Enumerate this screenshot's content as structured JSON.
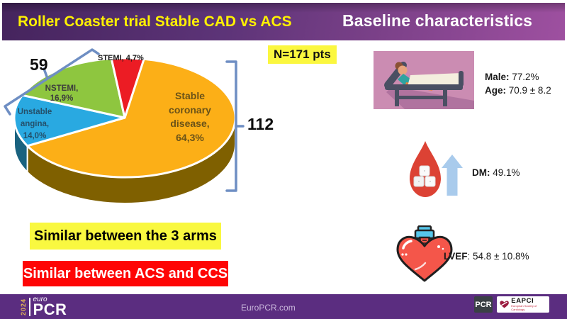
{
  "header": {
    "title_left": "Roller Coaster trial Stable CAD vs ACS",
    "title_right": "Baseline characteristics"
  },
  "colors": {
    "header_gradient_left": "#45245d",
    "header_gradient_right": "#9e50a0",
    "title_yellow": "#fff101",
    "footer_purple": "#5b2d80",
    "highlight_yellow": "#f9f840",
    "banner_red": "#fe0505",
    "bracket_blue": "#6e8ec3"
  },
  "chart_data": {
    "type": "pie",
    "style": "3d",
    "title": "",
    "total_patients": 171,
    "start_angle_deg": 10,
    "legend": "none",
    "labels_on_slices": true,
    "slices": [
      {
        "label": "Stable coronary disease",
        "pct": 64.3,
        "n": 112,
        "color": "#fcaf17",
        "side_color": "#7f6000"
      },
      {
        "label": "Unstable angina",
        "pct": 14.0,
        "color": "#29a9e1",
        "side_color": "#19627f"
      },
      {
        "label": "NSTEMI",
        "pct": 16.9,
        "color": "#8ec63f"
      },
      {
        "label": "STEMI",
        "pct": 4.7,
        "color": "#ec1c24"
      }
    ],
    "annotations": {
      "n_total": "N=171 pts",
      "acs_bracket_count": "59",
      "stable_bracket_count": "112"
    }
  },
  "pie_labels": {
    "stable": [
      "Stable",
      "coronary",
      "disease,",
      "64,3%"
    ],
    "unstable": [
      "Unstable",
      "angina,",
      "14,0%"
    ],
    "nstemi": [
      "NSTEMI,",
      "16,9%"
    ],
    "stemi": "STEMI, 4,7%",
    "n_total": "N=171 pts",
    "acs_count": "59",
    "stable_count": "112"
  },
  "stats": [
    {
      "icon": "patient-in-bed-icon",
      "lines": [
        {
          "label": "Male:",
          "value": " 77.2%"
        },
        {
          "label": "Age:",
          "value": " 70.9 ± 8.2"
        }
      ]
    },
    {
      "icon": "blood-drop-icon",
      "lines": [
        {
          "label": "DM:",
          "value": " 49.1%"
        }
      ]
    },
    {
      "icon": "heart-flask-icon",
      "lines": [
        {
          "label": "LVEF",
          "value": ": 54.8 ± 10.8%"
        }
      ]
    }
  ],
  "banners": {
    "yellow": "Similar between the 3 arms",
    "red": "Similar between ACS and CCS"
  },
  "footer": {
    "url": "EuroPCR.com",
    "logo_year": "2024",
    "logo_euro": "euro",
    "logo_pcr": "PCR",
    "pcr_badge": "PCR",
    "eapci_name": "EAPCI",
    "eapci_subtext": "European Society of Cardiology"
  }
}
